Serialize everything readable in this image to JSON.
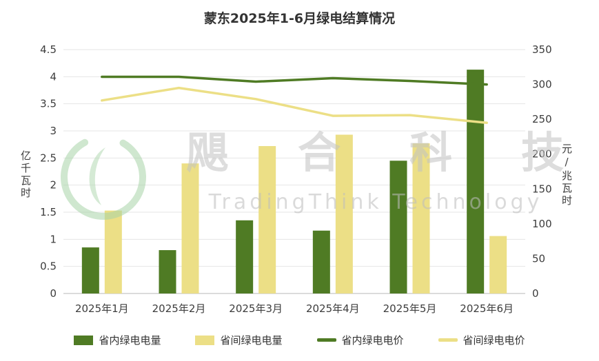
{
  "page": {
    "background": "#ffffff"
  },
  "chart_data": {
    "type": "bar+line",
    "title": "蒙东2025年1-6月绿电结算情况",
    "categories": [
      "2025年1月",
      "2025年2月",
      "2025年3月",
      "2025年4月",
      "2025年5月",
      "2025年6月"
    ],
    "left_axis": {
      "label": "亿千瓦时",
      "min": 0,
      "max": 4.5,
      "step": 0.5
    },
    "right_axis": {
      "label": "元/兆瓦时",
      "min": 0,
      "max": 350,
      "step": 50
    },
    "series": [
      {
        "name": "省内绿电电量",
        "type": "bar",
        "axis": "left",
        "color": "#4f7b24",
        "values": [
          0.85,
          0.8,
          1.35,
          1.16,
          2.45,
          4.13
        ]
      },
      {
        "name": "省间绿电电量",
        "type": "bar",
        "axis": "left",
        "color": "#ecdf86",
        "values": [
          1.53,
          2.4,
          2.72,
          2.93,
          2.77,
          1.06
        ]
      },
      {
        "name": "省内绿电电价",
        "type": "line",
        "axis": "right",
        "color": "#4f7b24",
        "values": [
          311,
          311,
          304,
          309,
          305,
          300
        ]
      },
      {
        "name": "省间绿电电价",
        "type": "line",
        "axis": "right",
        "color": "#ecdf86",
        "values": [
          277,
          295,
          279,
          255,
          256,
          245
        ]
      }
    ],
    "grid": true,
    "legend_position": "bottom",
    "colors": {
      "grid": "#e5e5e5",
      "axis_line": "#cfcfcf",
      "text": "#3c3c3c"
    }
  },
  "watermark": {
    "cn": "飓合科技",
    "en": "TradingThink Technology",
    "logo_color": "#a8d4a8"
  }
}
